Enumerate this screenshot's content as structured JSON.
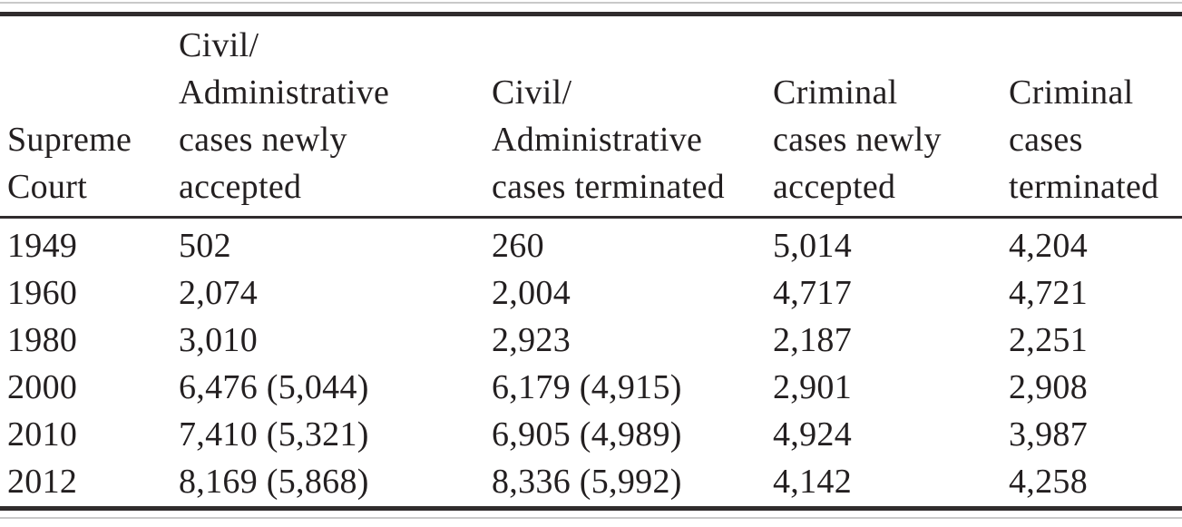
{
  "table": {
    "columns": [
      {
        "label": "Supreme\nCourt"
      },
      {
        "label": "Civil/\nAdministrative\ncases newly\naccepted"
      },
      {
        "label": "Civil/\nAdministrative\ncases terminated"
      },
      {
        "label": "Criminal\ncases newly\naccepted"
      },
      {
        "label": "Criminal\ncases\nterminated"
      }
    ],
    "rows": [
      {
        "year": "1949",
        "civil_admin_newly_accepted": "502",
        "civil_admin_terminated": "260",
        "criminal_newly_accepted": "5,014",
        "criminal_terminated": "4,204"
      },
      {
        "year": "1960",
        "civil_admin_newly_accepted": "2,074",
        "civil_admin_terminated": "2,004",
        "criminal_newly_accepted": "4,717",
        "criminal_terminated": "4,721"
      },
      {
        "year": "1980",
        "civil_admin_newly_accepted": "3,010",
        "civil_admin_terminated": "2,923",
        "criminal_newly_accepted": "2,187",
        "criminal_terminated": "2,251"
      },
      {
        "year": "2000",
        "civil_admin_newly_accepted": "6,476 (5,044)",
        "civil_admin_terminated": "6,179 (4,915)",
        "criminal_newly_accepted": "2,901",
        "criminal_terminated": "2,908"
      },
      {
        "year": "2010",
        "civil_admin_newly_accepted": "7,410 (5,321)",
        "civil_admin_terminated": "6,905 (4,989)",
        "criminal_newly_accepted": "4,924",
        "criminal_terminated": "3,987"
      },
      {
        "year": "2012",
        "civil_admin_newly_accepted": "8,169 (5,868)",
        "civil_admin_terminated": "8,336 (5,992)",
        "criminal_newly_accepted": "4,142",
        "criminal_terminated": "4,258"
      }
    ]
  },
  "colors": {
    "text": "#231f20",
    "rule_dark": "#302c2d",
    "rule_light": "#c9c9c9",
    "background": "#ffffff"
  }
}
